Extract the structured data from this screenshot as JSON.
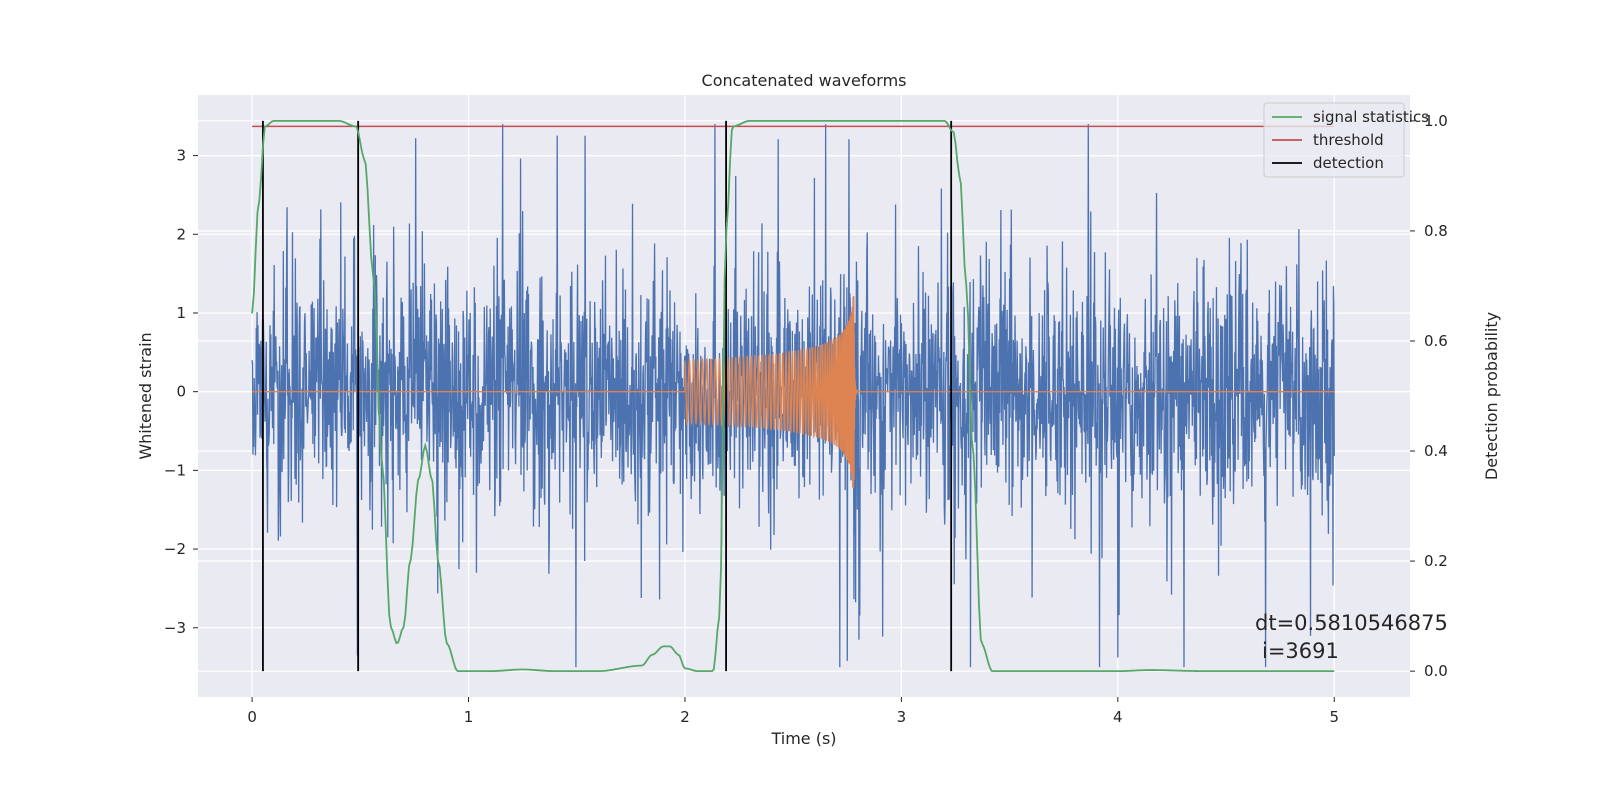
{
  "chart_data": {
    "type": "line",
    "title": "Concatenated waveforms",
    "xlabel": "Time (s)",
    "ylabel": "Whitened strain",
    "y2label": "Detection probability",
    "xlim": [
      -0.25,
      5.35
    ],
    "ylim": [
      -3.88,
      3.77
    ],
    "y2lim": [
      -0.047,
      1.047
    ],
    "xticks": [
      0,
      1,
      2,
      3,
      4,
      5
    ],
    "yticks": [
      -3,
      -2,
      -1,
      0,
      1,
      2,
      3
    ],
    "y2ticks": [
      0.0,
      0.2,
      0.4,
      0.6,
      0.8,
      1.0
    ],
    "xtick_labels": [
      "0",
      "1",
      "2",
      "3",
      "4",
      "5"
    ],
    "ytick_labels": [
      "−3",
      "−2",
      "−1",
      "0",
      "1",
      "2",
      "3"
    ],
    "y2tick_labels": [
      "0.0",
      "0.2",
      "0.4",
      "0.6",
      "0.8",
      "1.0"
    ],
    "grid": true,
    "legend_position": "top-right",
    "legend": [
      {
        "label": "signal statistics",
        "color": "#55a868"
      },
      {
        "label": "threshold",
        "color": "#c44e52"
      },
      {
        "label": "detection",
        "color": "#000000"
      }
    ],
    "series": [
      {
        "kind": "whitened-noise-strain",
        "axis": "left",
        "color": "#4c72b0",
        "x_range": [
          0,
          5
        ],
        "approx_envelope": [
          -3.5,
          3.4
        ]
      },
      {
        "kind": "injected-chirp-waveform",
        "axis": "left",
        "color": "#dd8452",
        "x_range": [
          2.0,
          2.78
        ],
        "approx_peak_amplitude": 1.65
      },
      {
        "name": "signal statistics",
        "axis": "right",
        "color": "#55a868",
        "x": [
          0,
          0.03,
          0.06,
          0.1,
          0.2,
          0.4,
          0.48,
          0.52,
          0.56,
          0.6,
          0.64,
          0.67,
          0.7,
          0.73,
          0.77,
          0.8,
          0.83,
          0.86,
          0.9,
          0.95,
          1.1,
          1.25,
          1.4,
          1.6,
          1.8,
          1.85,
          1.9,
          1.93,
          1.97,
          2.0,
          2.06,
          2.13,
          2.16,
          2.19,
          2.22,
          2.3,
          2.6,
          3.0,
          3.2,
          3.24,
          3.27,
          3.3,
          3.33,
          3.37,
          3.42,
          3.5,
          4.0,
          4.15,
          4.4,
          5.0
        ],
        "y": [
          0.65,
          0.85,
          0.99,
          1.0,
          1.0,
          1.0,
          0.99,
          0.93,
          0.72,
          0.38,
          0.08,
          0.05,
          0.08,
          0.2,
          0.35,
          0.41,
          0.35,
          0.2,
          0.05,
          0.0,
          0.0,
          0.003,
          0.0,
          0.0,
          0.01,
          0.03,
          0.045,
          0.045,
          0.03,
          0.005,
          0.0,
          0.0,
          0.1,
          0.8,
          0.99,
          1.0,
          1.0,
          1.0,
          1.0,
          0.98,
          0.9,
          0.7,
          0.4,
          0.05,
          0.0,
          0.0,
          0.0,
          0.002,
          0.0,
          0.0
        ]
      },
      {
        "name": "threshold",
        "axis": "right",
        "color": "#c44e52",
        "x": [
          0,
          5
        ],
        "y": [
          0.99,
          0.99
        ]
      }
    ],
    "detections": [
      0.05,
      0.49,
      2.19,
      3.23
    ],
    "annotation": {
      "line1": "dt=0.5810546875",
      "line2": "i=3691"
    }
  }
}
